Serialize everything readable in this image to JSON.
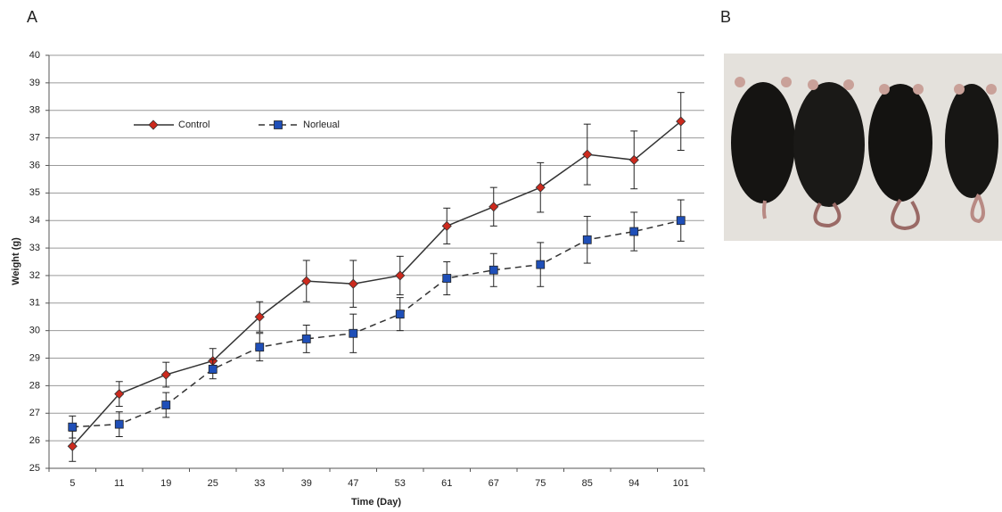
{
  "panel_labels": [
    "A",
    "B"
  ],
  "chart_data": {
    "type": "line",
    "x_label": "Time (Day)",
    "y_label": "Weight (g)",
    "categories": [
      "5",
      "11",
      "19",
      "25",
      "33",
      "39",
      "47",
      "53",
      "61",
      "67",
      "75",
      "85",
      "94",
      "101"
    ],
    "series": [
      {
        "name": "Control",
        "color": "#cc2a1e",
        "line_color": "#333333",
        "dashed": false,
        "marker": "diamond",
        "values": [
          25.8,
          27.7,
          28.4,
          28.9,
          30.5,
          31.8,
          31.7,
          32.0,
          33.8,
          34.5,
          35.2,
          36.4,
          36.2,
          37.6
        ],
        "errors": [
          0.55,
          0.45,
          0.45,
          0.45,
          0.55,
          0.75,
          0.85,
          0.7,
          0.65,
          0.7,
          0.9,
          1.1,
          1.05,
          1.05
        ]
      },
      {
        "name": "Norleual",
        "color": "#1f4fb8",
        "line_color": "#333333",
        "dashed": true,
        "marker": "square",
        "values": [
          26.5,
          26.6,
          27.3,
          28.6,
          29.4,
          29.7,
          29.9,
          30.6,
          31.9,
          32.2,
          32.4,
          33.3,
          33.6,
          34.0
        ],
        "errors": [
          0.4,
          0.45,
          0.45,
          0.35,
          0.5,
          0.5,
          0.7,
          0.6,
          0.6,
          0.6,
          0.8,
          0.85,
          0.7,
          0.75
        ]
      }
    ],
    "ylim": [
      25,
      40
    ],
    "yticks": [
      25,
      26,
      27,
      28,
      29,
      30,
      31,
      32,
      33,
      34,
      35,
      36,
      37,
      38,
      39,
      40
    ],
    "grid": true
  }
}
